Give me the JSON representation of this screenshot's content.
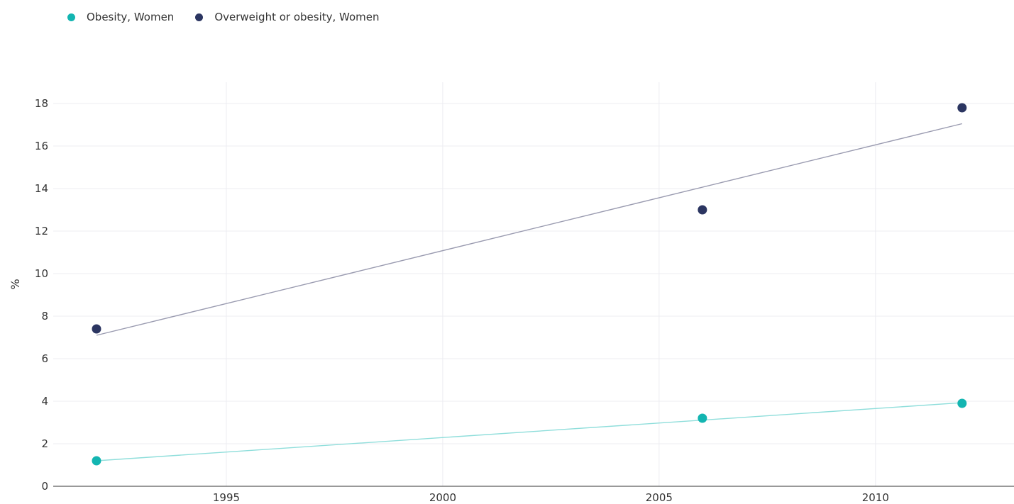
{
  "chart_data": {
    "type": "scatter",
    "ylabel": "%",
    "xlabel": "",
    "xlim": [
      1991,
      2013.2
    ],
    "ylim": [
      0,
      19
    ],
    "x_ticks": [
      1995,
      2000,
      2005,
      2010
    ],
    "y_ticks": [
      0,
      2,
      4,
      6,
      8,
      10,
      12,
      14,
      16,
      18
    ],
    "grid": true,
    "legend_position": "top-left",
    "series": [
      {
        "name": "Obesity, Women",
        "color": "#13b5b1",
        "trend_color": "#8fdedb",
        "x": [
          1992,
          2006,
          2012
        ],
        "values": [
          1.2,
          3.2,
          3.9
        ],
        "trend": {
          "x": [
            1992,
            2012
          ],
          "y": [
            1.2,
            3.93
          ]
        }
      },
      {
        "name": "Overweight or obesity, Women",
        "color": "#2b3561",
        "trend_color": "#9a9bb0",
        "x": [
          1992,
          2006,
          2012
        ],
        "values": [
          7.4,
          13.0,
          17.8
        ],
        "trend": {
          "x": [
            1992,
            2012
          ],
          "y": [
            7.1,
            17.05
          ]
        }
      }
    ]
  }
}
